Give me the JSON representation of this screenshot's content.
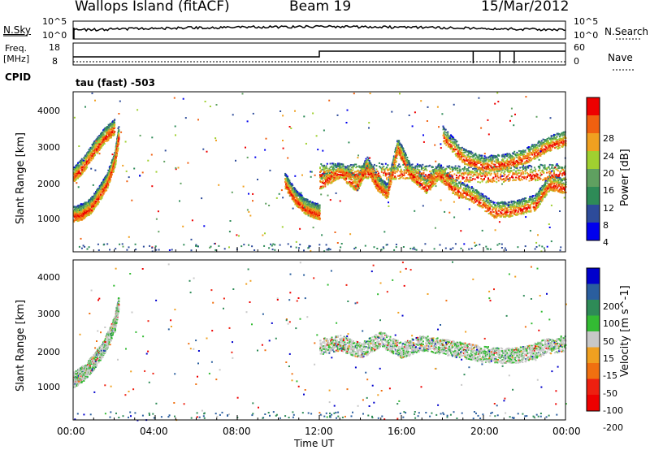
{
  "header": {
    "site": "Wallops Island (fitACF)",
    "beam": "Beam 19",
    "date": "15/Mar/2012"
  },
  "noise_panel": {
    "left_label": "N.Sky",
    "right_label": "N.Search",
    "left_ticks": [
      "10^5",
      "10^0"
    ],
    "right_ticks": [
      "10^5",
      "10^0"
    ]
  },
  "freq_panel": {
    "left_label_1": "Freq.",
    "left_label_2": "[MHz]",
    "right_label": "Nave",
    "left_ticks": [
      "18",
      "8"
    ],
    "right_ticks": [
      "60",
      "0"
    ]
  },
  "cpid": {
    "label": "CPID",
    "value": "tau (fast) -503"
  },
  "x_axis": {
    "label": "Time UT",
    "ticks": [
      "00:00",
      "04:00",
      "08:00",
      "12:00",
      "16:00",
      "20:00",
      "00:00"
    ]
  },
  "colors": {
    "power": [
      "#0000ee",
      "#2d4b9a",
      "#2e8b57",
      "#5fa060",
      "#a0d030",
      "#f0a020",
      "#f06010",
      "#ee0000"
    ],
    "velocity": [
      "#0000cc",
      "#2a5e9e",
      "#2e8b57",
      "#33bb33",
      "#c8c8c8",
      "#f0a020",
      "#f07010",
      "#ee2010",
      "#ee0000"
    ]
  },
  "chart_data": [
    {
      "type": "heatmap",
      "title": "Power",
      "xlabel": "Time UT",
      "ylabel": "Slant Range [km]",
      "xlim": [
        0,
        24
      ],
      "ylim": [
        200,
        4500
      ],
      "y_ticks": [
        "1000",
        "2000",
        "3000",
        "4000"
      ],
      "colorbar_label": "Power [dB]",
      "colorbar_ticks": [
        "4",
        "8",
        "12",
        "16",
        "20",
        "24",
        "28"
      ],
      "traces": [
        {
          "x": [
            0.0,
            0.4,
            0.8,
            1.2,
            1.6,
            2.0,
            2.2
          ],
          "y": [
            1150,
            1200,
            1350,
            1650,
            2000,
            2600,
            3300
          ]
        },
        {
          "x": [
            0.0,
            0.5,
            1.0,
            1.5,
            2.0
          ],
          "y": [
            2200,
            2500,
            2900,
            3250,
            3500
          ]
        },
        {
          "x": [
            10.3,
            10.8,
            11.3,
            11.7,
            12.0
          ],
          "y": [
            2050,
            1600,
            1350,
            1250,
            1200
          ]
        },
        {
          "x": [
            12.0,
            13.0,
            13.8,
            14.3,
            14.8,
            15.3,
            15.8,
            16.4,
            17.2,
            17.8,
            18.5,
            19.5,
            20.5,
            21.5,
            22.5,
            23.2,
            24.0
          ],
          "y": [
            2000,
            2350,
            1950,
            2500,
            2000,
            1750,
            3000,
            2300,
            1900,
            2300,
            1900,
            1650,
            1250,
            1300,
            1450,
            2000,
            1900
          ]
        },
        {
          "x": [
            12.0,
            14.0,
            16.0,
            18.0,
            20.0,
            22.0,
            24.0
          ],
          "y": [
            2300,
            2300,
            2300,
            2250,
            2200,
            2250,
            2300
          ]
        },
        {
          "x": [
            18.0,
            19.0,
            20.0,
            21.0,
            22.0,
            23.0,
            24.0
          ],
          "y": [
            3300,
            2700,
            2500,
            2550,
            2700,
            3000,
            3200
          ]
        }
      ]
    },
    {
      "type": "heatmap",
      "title": "Velocity",
      "xlabel": "Time UT",
      "ylabel": "Slant Range [km]",
      "xlim": [
        0,
        24
      ],
      "ylim": [
        200,
        4500
      ],
      "y_ticks": [
        "1000",
        "2000",
        "3000",
        "4000"
      ],
      "colorbar_label": "Velocity [m s^-1]",
      "colorbar_ticks": [
        "200",
        "100",
        "50",
        "15",
        "-15",
        "-50",
        "-100",
        "-200"
      ],
      "traces": [
        {
          "x": [
            0.0,
            0.5,
            1.0,
            1.5,
            2.0,
            2.2
          ],
          "y": [
            1200,
            1400,
            1700,
            2100,
            2700,
            3300
          ]
        },
        {
          "x": [
            12.0,
            13.0,
            14.0,
            15.0,
            16.0,
            17.0,
            18.0,
            19.0,
            20.0,
            21.0,
            22.0,
            23.0,
            24.0
          ],
          "y": [
            2100,
            2200,
            2000,
            2300,
            2000,
            2200,
            2100,
            2000,
            1900,
            1850,
            1900,
            2100,
            2200
          ]
        }
      ]
    }
  ]
}
